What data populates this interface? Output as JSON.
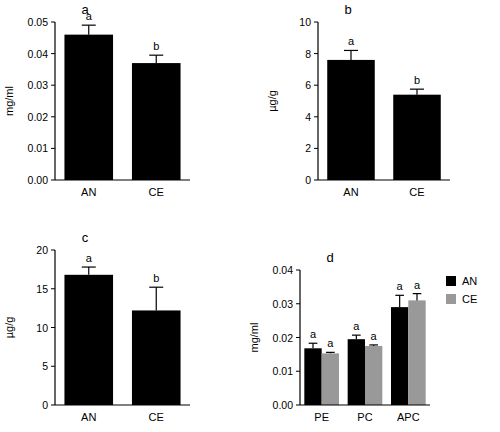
{
  "chart_data": [
    {
      "type": "bar",
      "title": "a",
      "y_label": "mg/ml",
      "categories": [
        "AN",
        "CE"
      ],
      "values": [
        0.046,
        0.037
      ],
      "errors": [
        0.003,
        0.0025
      ],
      "letters": [
        "a",
        "b"
      ],
      "color": "#000000",
      "ylim": [
        0,
        0.05
      ],
      "yticks": [
        {
          "value": 0,
          "label": "0.00"
        },
        {
          "value": 0.01,
          "label": "0.01"
        },
        {
          "value": 0.02,
          "label": "0.02"
        },
        {
          "value": 0.03,
          "label": "0.03"
        },
        {
          "value": 0.04,
          "label": "0.04"
        },
        {
          "value": 0.05,
          "label": "0.05"
        }
      ]
    },
    {
      "type": "bar",
      "title": "b",
      "y_label": "µg/g",
      "categories": [
        "AN",
        "CE"
      ],
      "values": [
        7.6,
        5.4
      ],
      "errors": [
        0.6,
        0.35
      ],
      "letters": [
        "a",
        "b"
      ],
      "color": "#000000",
      "ylim": [
        0,
        10
      ],
      "yticks": [
        0,
        2,
        4,
        6,
        8,
        10
      ]
    },
    {
      "type": "bar",
      "title": "c",
      "y_label": "µg/g",
      "categories": [
        "AN",
        "CE"
      ],
      "values": [
        16.8,
        12.2
      ],
      "errors": [
        1.0,
        3.0
      ],
      "letters": [
        "a",
        "b"
      ],
      "color": "#000000",
      "ylim": [
        0,
        20
      ],
      "yticks": [
        0,
        5,
        10,
        15,
        20
      ]
    },
    {
      "type": "bar",
      "title": "d",
      "y_label": "mg/ml",
      "categories": [
        "PE",
        "PC",
        "APC"
      ],
      "series": [
        {
          "name": "AN",
          "color": "#000000",
          "values": [
            0.0168,
            0.0195,
            0.029
          ],
          "errors": [
            0.0015,
            0.0012,
            0.0035
          ],
          "letters": [
            "a",
            "a",
            "a"
          ]
        },
        {
          "name": "CE",
          "color": "#999999",
          "values": [
            0.0153,
            0.0175,
            0.031
          ],
          "errors": [
            0.0003,
            0.0003,
            0.002
          ],
          "letters": [
            "a",
            "a",
            "a"
          ]
        }
      ],
      "legend": "right",
      "ylim": [
        0,
        0.04
      ],
      "yticks": [
        {
          "value": 0,
          "label": "0.00"
        },
        {
          "value": 0.01,
          "label": "0.01"
        },
        {
          "value": 0.02,
          "label": "0.02"
        },
        {
          "value": 0.03,
          "label": "0.03"
        },
        {
          "value": 0.04,
          "label": "0.04"
        }
      ]
    }
  ]
}
